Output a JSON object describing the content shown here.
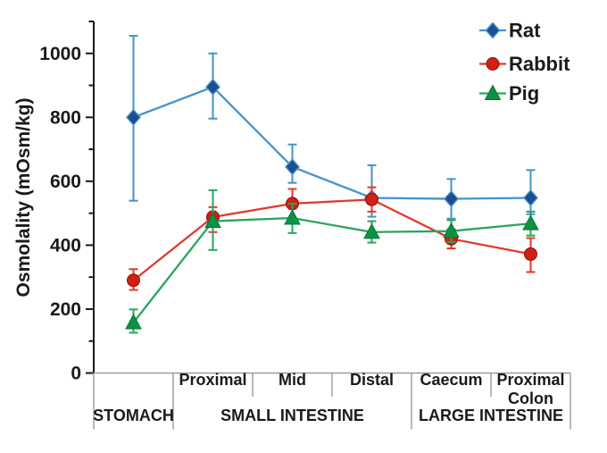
{
  "chart_data": {
    "type": "line",
    "title": "",
    "ylabel": "Osmolality  (mOsm/kg)",
    "ylim": [
      0,
      1100
    ],
    "y_major_ticks": [
      0,
      200,
      400,
      600,
      800,
      1000
    ],
    "y_minor_ticks": [
      100,
      300,
      500,
      700,
      900,
      1100
    ],
    "grid": "off",
    "legend_position": "top-right-inside",
    "categories": [
      "Stomach",
      "Proximal small intestine",
      "Mid small intestine",
      "Distal small intestine",
      "Caecum",
      "Proximal colon"
    ],
    "x_segment_sublabels": [
      "",
      "Proximal",
      "Mid",
      "Distal",
      "Caecum",
      "Proximal\nColon"
    ],
    "x_group_labels": [
      {
        "label": "STOMACH",
        "start": 0,
        "end": 1
      },
      {
        "label": "SMALL INTESTINE",
        "start": 1,
        "end": 4
      },
      {
        "label": "LARGE INTESTINE",
        "start": 4,
        "end": 6
      }
    ],
    "series": [
      {
        "name": "Rat",
        "marker": "diamond",
        "line_color": "#4493c8",
        "marker_color": "#1b4f8f",
        "marker_edge": "#4493c8",
        "values": [
          800,
          895,
          645,
          548,
          545,
          548
        ],
        "err_low": [
          539,
          796,
          595,
          489,
          483,
          497
        ],
        "err_high": [
          1055,
          1000,
          715,
          650,
          607,
          635
        ]
      },
      {
        "name": "Rabbit",
        "marker": "circle",
        "line_color": "#e23a2c",
        "marker_color": "#d21f14",
        "marker_edge": "#901107",
        "values": [
          290,
          488,
          530,
          543,
          420,
          372
        ],
        "err_low": [
          260,
          441,
          480,
          505,
          390,
          316
        ],
        "err_high": [
          325,
          519,
          576,
          581,
          450,
          422
        ]
      },
      {
        "name": "Pig",
        "marker": "triangle",
        "line_color": "#2aa55f",
        "marker_color": "#0c9143",
        "marker_edge": "#077a36",
        "values": [
          158,
          475,
          485,
          441,
          444,
          468
        ],
        "err_low": [
          126,
          385,
          438,
          408,
          410,
          430
        ],
        "err_high": [
          199,
          572,
          530,
          475,
          478,
          505
        ]
      }
    ],
    "colors": {
      "text": "#1a1a1a",
      "axis": "#1a1a1a",
      "table_lines": "#9b9b9b",
      "background": "#ffffff"
    }
  }
}
